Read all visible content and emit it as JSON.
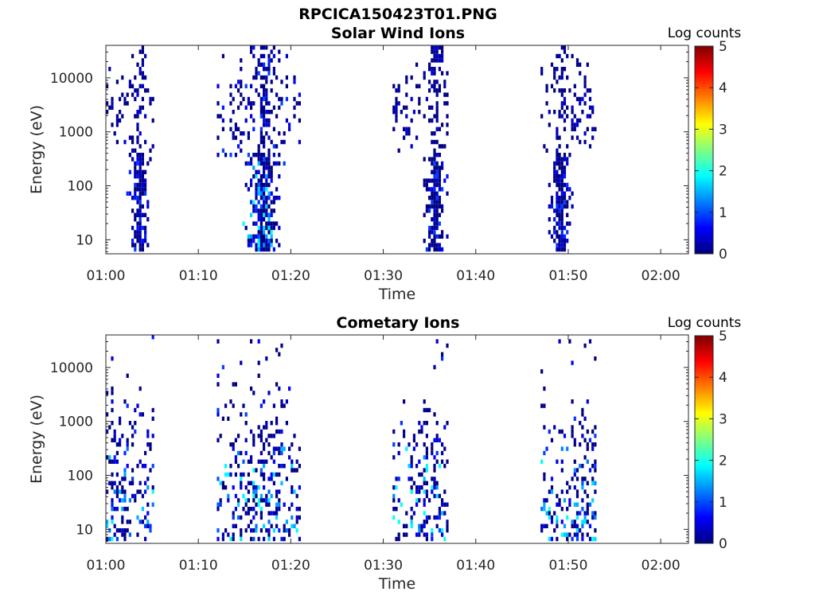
{
  "figure": {
    "title": "RPCICA150423T01.PNG"
  },
  "colormap": {
    "name": "jet",
    "stops": [
      "#000080",
      "#0000ff",
      "#0080ff",
      "#00ffff",
      "#80ff80",
      "#ffff00",
      "#ff8000",
      "#ff0000",
      "#800000"
    ]
  },
  "chart_data": [
    {
      "type": "heatmap",
      "title": "Solar Wind Ions",
      "xlabel": "Time",
      "ylabel": "Energy (eV)",
      "x_scale": "time",
      "xlim": [
        "01:00",
        "02:03"
      ],
      "x_ticks": [
        "01:00",
        "01:10",
        "01:20",
        "01:30",
        "01:40",
        "01:50",
        "02:00"
      ],
      "y_scale": "log",
      "ylim": [
        5.5,
        40000
      ],
      "y_ticks": [
        10,
        100,
        1000,
        10000
      ],
      "y_tick_labels": [
        "10",
        "100",
        "1000",
        "10000"
      ],
      "colorbar": {
        "label": "Log counts",
        "range": [
          0,
          5
        ],
        "ticks": [
          "0",
          "1",
          "2",
          "3",
          "4",
          "5"
        ]
      },
      "bursts": [
        {
          "start": "01:00",
          "end": "01:05",
          "peak": "01:03:30",
          "max_log_counts": 1.0
        },
        {
          "start": "01:12",
          "end": "01:21",
          "peak": "01:17:00",
          "max_log_counts": 2.0
        },
        {
          "start": "01:31",
          "end": "01:37",
          "peak": "01:35:30",
          "max_log_counts": 1.0
        },
        {
          "start": "01:47",
          "end": "01:53",
          "peak": "01:49:00",
          "max_log_counts": 1.0
        }
      ],
      "summary": {
        "low_energy_core_eV": [
          6,
          400
        ],
        "high_energy_band_eV": [
          300,
          40000
        ],
        "typical_log_counts": [
          0,
          1
        ]
      }
    },
    {
      "type": "heatmap",
      "title": "Cometary Ions",
      "xlabel": "Time",
      "ylabel": "Energy (eV)",
      "x_scale": "time",
      "xlim": [
        "01:00",
        "02:03"
      ],
      "x_ticks": [
        "01:00",
        "01:10",
        "01:20",
        "01:30",
        "01:40",
        "01:50",
        "02:00"
      ],
      "y_scale": "log",
      "ylim": [
        5.5,
        40000
      ],
      "y_ticks": [
        10,
        100,
        1000,
        10000
      ],
      "y_tick_labels": [
        "10",
        "100",
        "1000",
        "10000"
      ],
      "colorbar": {
        "label": "Log counts",
        "range": [
          0,
          5
        ],
        "ticks": [
          "0",
          "1",
          "2",
          "3",
          "4",
          "5"
        ]
      },
      "bursts": [
        {
          "start": "01:00",
          "end": "01:05",
          "peak": "01:01:00",
          "max_log_counts": 2.0
        },
        {
          "start": "01:12",
          "end": "01:21",
          "peak": "01:17:00",
          "max_log_counts": 2.0
        },
        {
          "start": "01:31",
          "end": "01:37",
          "peak": "01:35:00",
          "max_log_counts": 2.0
        },
        {
          "start": "01:47",
          "end": "01:53",
          "peak": "01:52:00",
          "max_log_counts": 2.0
        }
      ],
      "summary": {
        "energy_range_eV": [
          6,
          25000
        ],
        "dense_below_eV": 300,
        "typical_log_counts": [
          0,
          2
        ]
      }
    }
  ]
}
